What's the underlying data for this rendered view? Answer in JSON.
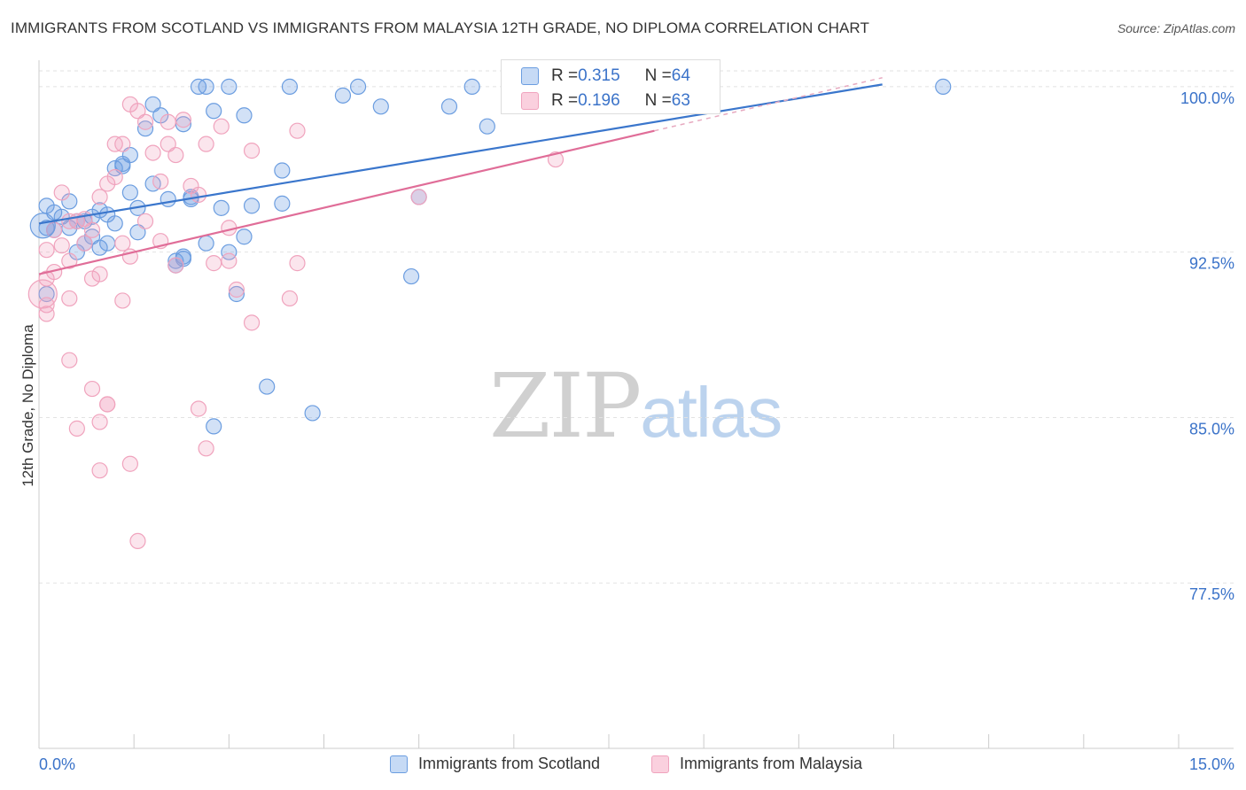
{
  "title": "IMMIGRANTS FROM SCOTLAND VS IMMIGRANTS FROM MALAYSIA 12TH GRADE, NO DIPLOMA CORRELATION CHART",
  "source": "Source: ZipAtlas.com",
  "watermark": {
    "zip": "ZIP",
    "atlas": "atlas"
  },
  "legend_stats": [
    {
      "r_label": "R = ",
      "r_value": "0.315",
      "n_label": "N = ",
      "n_value": "64"
    },
    {
      "r_label": "R = ",
      "r_value": "0.196",
      "n_label": "N = ",
      "n_value": "63"
    }
  ],
  "chart_data": {
    "type": "scatter",
    "title": "IMMIGRANTS FROM SCOTLAND VS IMMIGRANTS FROM MALAYSIA 12TH GRADE, NO DIPLOMA CORRELATION CHART",
    "xlabel": "",
    "ylabel": "12th Grade, No Diploma",
    "xlim": [
      0,
      15
    ],
    "ylim": [
      70,
      101.2
    ],
    "x_tick_labels": [
      "0.0%",
      "15.0%"
    ],
    "y_ticks": [
      77.5,
      85.0,
      92.5,
      100.0
    ],
    "y_tick_labels": [
      "77.5%",
      "85.0%",
      "92.5%",
      "100.0%"
    ],
    "grid": true,
    "legend_position": "top-center",
    "colors": {
      "scotland": "#6b9de0",
      "malaysia": "#f0a3bd",
      "scotland_line": "#3a76cc",
      "malaysia_line": "#e06d98"
    },
    "series": [
      {
        "name": "Immigrants from Scotland",
        "color": "#6b9de0",
        "trend": {
          "x": [
            0,
            11.1
          ],
          "y": [
            93.8,
            100.1
          ]
        },
        "points": [
          [
            0.1,
            93.6
          ],
          [
            0.1,
            94.6
          ],
          [
            0.2,
            94.3
          ],
          [
            0.3,
            94.1
          ],
          [
            0.4,
            93.6
          ],
          [
            0.4,
            94.8
          ],
          [
            0.5,
            93.9
          ],
          [
            0.6,
            93.9
          ],
          [
            0.5,
            92.5
          ],
          [
            0.6,
            92.9
          ],
          [
            0.7,
            93.2
          ],
          [
            0.7,
            94.1
          ],
          [
            0.8,
            94.4
          ],
          [
            0.9,
            92.9
          ],
          [
            0.8,
            92.7
          ],
          [
            0.9,
            94.2
          ],
          [
            1.0,
            96.3
          ],
          [
            1.0,
            93.8
          ],
          [
            1.1,
            96.5
          ],
          [
            1.2,
            96.9
          ],
          [
            1.1,
            96.4
          ],
          [
            1.2,
            95.2
          ],
          [
            1.3,
            94.5
          ],
          [
            1.3,
            93.4
          ],
          [
            1.4,
            98.1
          ],
          [
            1.5,
            99.2
          ],
          [
            1.5,
            95.6
          ],
          [
            1.6,
            98.7
          ],
          [
            1.7,
            94.9
          ],
          [
            1.8,
            92.1
          ],
          [
            1.8,
            91.9
          ],
          [
            1.9,
            92.2
          ],
          [
            1.9,
            92.3
          ],
          [
            1.9,
            98.3
          ],
          [
            2.0,
            94.9
          ],
          [
            2.0,
            95.0
          ],
          [
            2.1,
            100.0
          ],
          [
            2.2,
            100.0
          ],
          [
            2.2,
            92.9
          ],
          [
            2.3,
            84.6
          ],
          [
            2.3,
            98.9
          ],
          [
            2.4,
            94.5
          ],
          [
            2.5,
            100.0
          ],
          [
            2.5,
            92.5
          ],
          [
            2.6,
            90.6
          ],
          [
            2.7,
            93.2
          ],
          [
            2.7,
            98.7
          ],
          [
            2.8,
            94.6
          ],
          [
            3.0,
            86.4
          ],
          [
            3.2,
            94.7
          ],
          [
            3.2,
            96.2
          ],
          [
            3.3,
            100.0
          ],
          [
            3.6,
            85.2
          ],
          [
            4.0,
            99.6
          ],
          [
            4.2,
            100.0
          ],
          [
            4.5,
            99.1
          ],
          [
            4.9,
            91.4
          ],
          [
            5.0,
            95.0
          ],
          [
            5.4,
            99.1
          ],
          [
            5.7,
            100.0
          ],
          [
            5.9,
            98.2
          ],
          [
            11.9,
            100.0
          ],
          [
            0.1,
            90.6
          ],
          [
            0.2,
            93.5
          ]
        ]
      },
      {
        "name": "Immigrants from Malaysia",
        "color": "#f0a3bd",
        "trend": {
          "x": [
            0,
            8.1
          ],
          "y": [
            91.5,
            98.0
          ]
        },
        "points": [
          [
            0.1,
            90.1
          ],
          [
            0.1,
            91.3
          ],
          [
            0.1,
            92.6
          ],
          [
            0.1,
            89.7
          ],
          [
            0.2,
            91.6
          ],
          [
            0.2,
            93.5
          ],
          [
            0.3,
            92.8
          ],
          [
            0.3,
            95.2
          ],
          [
            0.4,
            92.1
          ],
          [
            0.4,
            90.4
          ],
          [
            0.4,
            93.9
          ],
          [
            0.4,
            87.6
          ],
          [
            0.5,
            84.5
          ],
          [
            0.5,
            93.9
          ],
          [
            0.6,
            94.0
          ],
          [
            0.6,
            92.9
          ],
          [
            0.7,
            93.5
          ],
          [
            0.7,
            91.3
          ],
          [
            0.7,
            86.3
          ],
          [
            0.8,
            91.5
          ],
          [
            0.8,
            95.0
          ],
          [
            0.8,
            84.8
          ],
          [
            0.8,
            82.6
          ],
          [
            0.9,
            85.6
          ],
          [
            0.9,
            95.6
          ],
          [
            0.9,
            85.6
          ],
          [
            1.0,
            97.4
          ],
          [
            1.0,
            95.9
          ],
          [
            1.1,
            92.9
          ],
          [
            1.1,
            90.3
          ],
          [
            1.1,
            97.4
          ],
          [
            1.2,
            99.2
          ],
          [
            1.2,
            92.3
          ],
          [
            1.2,
            82.9
          ],
          [
            1.3,
            79.4
          ],
          [
            1.3,
            98.9
          ],
          [
            1.4,
            93.9
          ],
          [
            1.4,
            98.4
          ],
          [
            1.5,
            97.0
          ],
          [
            1.6,
            95.7
          ],
          [
            1.6,
            93.0
          ],
          [
            1.7,
            97.4
          ],
          [
            1.7,
            98.4
          ],
          [
            1.8,
            96.9
          ],
          [
            1.8,
            91.9
          ],
          [
            1.9,
            98.5
          ],
          [
            2.0,
            95.5
          ],
          [
            2.1,
            95.1
          ],
          [
            2.1,
            85.4
          ],
          [
            2.2,
            97.4
          ],
          [
            2.2,
            83.6
          ],
          [
            2.3,
            92.0
          ],
          [
            2.4,
            98.2
          ],
          [
            2.5,
            92.1
          ],
          [
            2.5,
            93.6
          ],
          [
            2.6,
            90.8
          ],
          [
            2.8,
            89.3
          ],
          [
            2.8,
            97.1
          ],
          [
            3.3,
            90.4
          ],
          [
            3.4,
            92.0
          ],
          [
            3.4,
            98.0
          ],
          [
            5.0,
            95.0
          ],
          [
            6.8,
            96.7
          ]
        ]
      }
    ]
  },
  "legend_bottom": [
    {
      "label": "Immigrants from Scotland",
      "color": "#6b9de0"
    },
    {
      "label": "Immigrants from Malaysia",
      "color": "#f0a3bd"
    }
  ]
}
